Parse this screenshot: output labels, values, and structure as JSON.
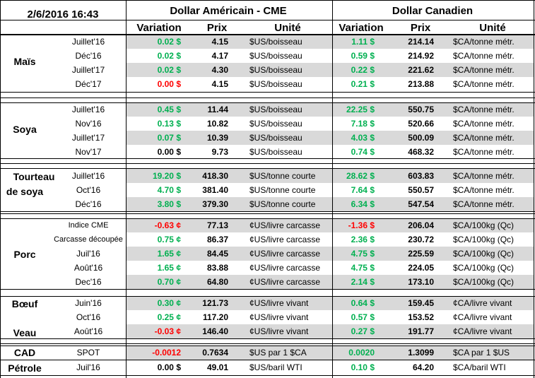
{
  "header": {
    "datetime": "2/6/2016 16:43",
    "usd_title": "Dollar Américain - CME",
    "cad_title": "Dollar Canadien",
    "col_variation": "Variation",
    "col_prix": "Prix",
    "col_unite": "Unité"
  },
  "groups": [
    {
      "label": "Maïs"
    },
    {
      "label": "Soya"
    },
    {
      "label": "Tourteau"
    },
    {
      "label": "de soya"
    },
    {
      "label": "Porc"
    },
    {
      "label": "Bœuf"
    },
    {
      "label": "Veau"
    },
    {
      "label": "CAD"
    },
    {
      "label": "Pétrole"
    }
  ],
  "rows": [
    {
      "term": "Juillet'16",
      "usd_var": "0.02 $",
      "usd_var_sign": "pos",
      "usd_price": "4.15",
      "usd_unit": "$US/boisseau",
      "cad_var": "1.11 $",
      "cad_var_sign": "pos",
      "cad_price": "214.14",
      "cad_unit": "$CA/tonne métr."
    },
    {
      "term": "Déc'16",
      "usd_var": "0.02 $",
      "usd_var_sign": "pos",
      "usd_price": "4.17",
      "usd_unit": "$US/boisseau",
      "cad_var": "0.59 $",
      "cad_var_sign": "pos",
      "cad_price": "214.92",
      "cad_unit": "$CA/tonne métr."
    },
    {
      "term": "Juillet'17",
      "usd_var": "0.02 $",
      "usd_var_sign": "pos",
      "usd_price": "4.30",
      "usd_unit": "$US/boisseau",
      "cad_var": "0.22 $",
      "cad_var_sign": "pos",
      "cad_price": "221.62",
      "cad_unit": "$CA/tonne métr."
    },
    {
      "term": "Déc'17",
      "usd_var": "0.00 $",
      "usd_var_sign": "neg",
      "usd_price": "4.15",
      "usd_unit": "$US/boisseau",
      "cad_var": "0.21 $",
      "cad_var_sign": "pos",
      "cad_price": "213.88",
      "cad_unit": "$CA/tonne métr."
    },
    {
      "term": "Juillet'16",
      "usd_var": "0.45 $",
      "usd_var_sign": "pos",
      "usd_price": "11.44",
      "usd_unit": "$US/boisseau",
      "cad_var": "22.25 $",
      "cad_var_sign": "pos",
      "cad_price": "550.75",
      "cad_unit": "$CA/tonne métr."
    },
    {
      "term": "Nov'16",
      "usd_var": "0.13 $",
      "usd_var_sign": "pos",
      "usd_price": "10.82",
      "usd_unit": "$US/boisseau",
      "cad_var": "7.18 $",
      "cad_var_sign": "pos",
      "cad_price": "520.66",
      "cad_unit": "$CA/tonne métr."
    },
    {
      "term": "Juillet'17",
      "usd_var": "0.07 $",
      "usd_var_sign": "pos",
      "usd_price": "10.39",
      "usd_unit": "$US/boisseau",
      "cad_var": "4.03 $",
      "cad_var_sign": "pos",
      "cad_price": "500.09",
      "cad_unit": "$CA/tonne métr."
    },
    {
      "term": "Nov'17",
      "usd_var": "0.00 $",
      "usd_var_sign": "zero",
      "usd_price": "9.73",
      "usd_unit": "$US/boisseau",
      "cad_var": "0.74 $",
      "cad_var_sign": "pos",
      "cad_price": "468.32",
      "cad_unit": "$CA/tonne métr."
    },
    {
      "term": "Juillet'16",
      "usd_var": "19.20 $",
      "usd_var_sign": "pos",
      "usd_price": "418.30",
      "usd_unit": "$US/tonne courte",
      "cad_var": "28.62 $",
      "cad_var_sign": "pos",
      "cad_price": "603.83",
      "cad_unit": "$CA/tonne métr."
    },
    {
      "term": "Oct'16",
      "usd_var": "4.70 $",
      "usd_var_sign": "pos",
      "usd_price": "381.40",
      "usd_unit": "$US/tonne courte",
      "cad_var": "7.64 $",
      "cad_var_sign": "pos",
      "cad_price": "550.57",
      "cad_unit": "$CA/tonne métr."
    },
    {
      "term": "Déc'16",
      "usd_var": "3.80 $",
      "usd_var_sign": "pos",
      "usd_price": "379.30",
      "usd_unit": "$US/tonne courte",
      "cad_var": "6.34 $",
      "cad_var_sign": "pos",
      "cad_price": "547.54",
      "cad_unit": "$CA/tonne métr."
    },
    {
      "term": "Indice CME",
      "usd_var": "-0.63 ¢",
      "usd_var_sign": "neg",
      "usd_price": "77.13",
      "usd_unit": "¢US/livre carcasse",
      "cad_var": "-1.36 $",
      "cad_var_sign": "neg",
      "cad_price": "206.04",
      "cad_unit": "$CA/100kg (Qc)"
    },
    {
      "term": "Carcasse découpée",
      "usd_var": "0.75 ¢",
      "usd_var_sign": "pos",
      "usd_price": "86.37",
      "usd_unit": "¢US/livre carcasse",
      "cad_var": "2.36 $",
      "cad_var_sign": "pos",
      "cad_price": "230.72",
      "cad_unit": "$CA/100kg (Qc)"
    },
    {
      "term": "Juil'16",
      "usd_var": "1.65 ¢",
      "usd_var_sign": "pos",
      "usd_price": "84.45",
      "usd_unit": "¢US/livre carcasse",
      "cad_var": "4.75 $",
      "cad_var_sign": "pos",
      "cad_price": "225.59",
      "cad_unit": "$CA/100kg (Qc)"
    },
    {
      "term": "Août'16",
      "usd_var": "1.65 ¢",
      "usd_var_sign": "pos",
      "usd_price": "83.88",
      "usd_unit": "¢US/livre carcasse",
      "cad_var": "4.75 $",
      "cad_var_sign": "pos",
      "cad_price": "224.05",
      "cad_unit": "$CA/100kg (Qc)"
    },
    {
      "term": "Dec'16",
      "usd_var": "0.70 ¢",
      "usd_var_sign": "pos",
      "usd_price": "64.80",
      "usd_unit": "¢US/livre carcasse",
      "cad_var": "2.14 $",
      "cad_var_sign": "pos",
      "cad_price": "173.10",
      "cad_unit": "$CA/100kg (Qc)"
    },
    {
      "term": "Juin'16",
      "usd_var": "0.30 ¢",
      "usd_var_sign": "pos",
      "usd_price": "121.73",
      "usd_unit": "¢US/livre vivant",
      "cad_var": "0.64 $",
      "cad_var_sign": "pos",
      "cad_price": "159.45",
      "cad_unit": "¢CA/livre vivant"
    },
    {
      "term": "Oct'16",
      "usd_var": "0.25 ¢",
      "usd_var_sign": "pos",
      "usd_price": "117.20",
      "usd_unit": "¢US/livre vivant",
      "cad_var": "0.57 $",
      "cad_var_sign": "pos",
      "cad_price": "153.52",
      "cad_unit": "¢CA/livre vivant"
    },
    {
      "term": "Août'16",
      "usd_var": "-0.03 ¢",
      "usd_var_sign": "neg",
      "usd_price": "146.40",
      "usd_unit": "¢US/livre vivant",
      "cad_var": "0.27 $",
      "cad_var_sign": "pos",
      "cad_price": "191.77",
      "cad_unit": "¢CA/livre vivant"
    },
    {
      "term": "SPOT",
      "usd_var": "-0.0012",
      "usd_var_sign": "neg",
      "usd_price": "0.7634",
      "usd_unit": "$US par 1 $CA",
      "cad_var": "0.0020",
      "cad_var_sign": "pos",
      "cad_price": "1.3099",
      "cad_unit": "$CA par 1 $US"
    },
    {
      "term": "Juil'16",
      "usd_var": "0.00 $",
      "usd_var_sign": "zero",
      "usd_price": "49.01",
      "usd_unit": "$US/baril WTI",
      "cad_var": "0.10 $",
      "cad_var_sign": "pos",
      "cad_price": "64.20",
      "cad_unit": "$CA/baril WTI"
    }
  ]
}
